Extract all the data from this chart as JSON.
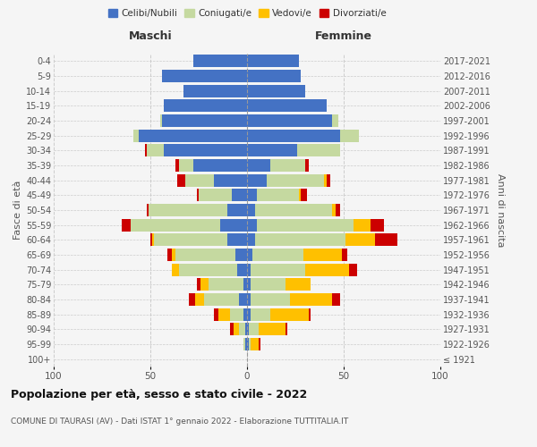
{
  "age_groups": [
    "100+",
    "95-99",
    "90-94",
    "85-89",
    "80-84",
    "75-79",
    "70-74",
    "65-69",
    "60-64",
    "55-59",
    "50-54",
    "45-49",
    "40-44",
    "35-39",
    "30-34",
    "25-29",
    "20-24",
    "15-19",
    "10-14",
    "5-9",
    "0-4"
  ],
  "birth_years": [
    "≤ 1921",
    "1922-1926",
    "1927-1931",
    "1932-1936",
    "1937-1941",
    "1942-1946",
    "1947-1951",
    "1952-1956",
    "1957-1961",
    "1962-1966",
    "1967-1971",
    "1972-1976",
    "1977-1981",
    "1982-1986",
    "1987-1991",
    "1992-1996",
    "1997-2001",
    "2002-2006",
    "2007-2011",
    "2012-2016",
    "2017-2021"
  ],
  "males": {
    "celibe": [
      0,
      1,
      1,
      2,
      4,
      2,
      5,
      6,
      10,
      14,
      10,
      8,
      17,
      28,
      43,
      56,
      44,
      43,
      33,
      44,
      28
    ],
    "coniugato": [
      0,
      1,
      3,
      7,
      18,
      18,
      30,
      31,
      38,
      46,
      41,
      17,
      15,
      7,
      9,
      3,
      1,
      0,
      0,
      0,
      0
    ],
    "vedovo": [
      0,
      0,
      3,
      6,
      5,
      4,
      4,
      2,
      1,
      0,
      0,
      0,
      0,
      0,
      0,
      0,
      0,
      0,
      0,
      0,
      0
    ],
    "divorziato": [
      0,
      0,
      2,
      2,
      3,
      2,
      0,
      2,
      1,
      5,
      1,
      1,
      4,
      2,
      1,
      0,
      0,
      0,
      0,
      0,
      0
    ]
  },
  "females": {
    "nubile": [
      0,
      1,
      1,
      2,
      2,
      2,
      2,
      3,
      4,
      5,
      4,
      5,
      10,
      12,
      26,
      48,
      44,
      41,
      30,
      28,
      27
    ],
    "coniugata": [
      0,
      1,
      5,
      10,
      20,
      18,
      28,
      26,
      47,
      50,
      40,
      22,
      30,
      18,
      22,
      10,
      3,
      0,
      0,
      0,
      0
    ],
    "vedova": [
      0,
      4,
      14,
      20,
      22,
      13,
      23,
      20,
      15,
      9,
      2,
      1,
      1,
      0,
      0,
      0,
      0,
      0,
      0,
      0,
      0
    ],
    "divorziata": [
      0,
      1,
      1,
      1,
      4,
      0,
      4,
      3,
      12,
      7,
      2,
      3,
      2,
      2,
      0,
      0,
      0,
      0,
      0,
      0,
      0
    ]
  },
  "colors": {
    "celibe": "#4472c4",
    "coniugato": "#c5d9a0",
    "vedovo": "#ffc000",
    "divorziato": "#cc0000"
  },
  "xlim": 100,
  "title": "Popolazione per età, sesso e stato civile - 2022",
  "subtitle": "COMUNE DI TAURASI (AV) - Dati ISTAT 1° gennaio 2022 - Elaborazione TUTTITALIA.IT",
  "xlabel_left": "Maschi",
  "xlabel_right": "Femmine",
  "ylabel_left": "Fasce di età",
  "ylabel_right": "Anni di nascita",
  "legend_labels": [
    "Celibi/Nubili",
    "Coniugati/e",
    "Vedovi/e",
    "Divorziati/e"
  ],
  "background_color": "#f5f5f5"
}
